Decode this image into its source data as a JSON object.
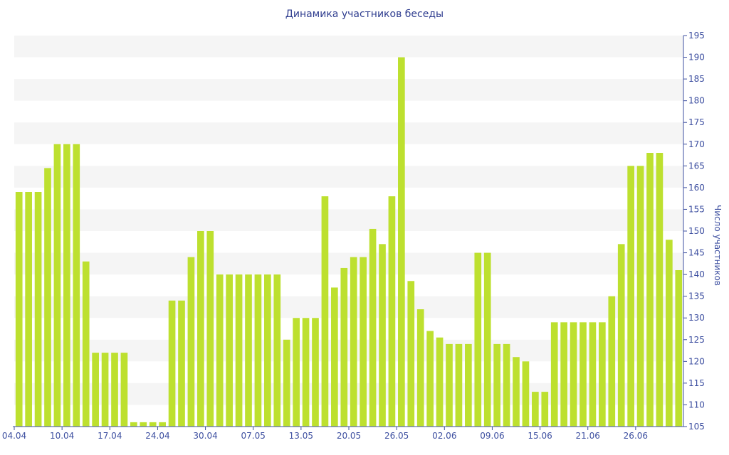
{
  "chart_data": {
    "type": "bar",
    "title": "Динамика участников беседы",
    "xlabel": "",
    "ylabel": "Число участников",
    "y_axis_side": "right",
    "ylim": [
      105,
      195
    ],
    "ytick_step": 5,
    "grid": "alternating horizontal bands",
    "legend": "none",
    "bar_color": "#bde02f",
    "band_color": "#f5f5f5",
    "axis_color": "#3d4fa0",
    "xtick_labels": [
      {
        "index": 0,
        "label": "04.04"
      },
      {
        "index": 5,
        "label": "10.04"
      },
      {
        "index": 10,
        "label": "17.04"
      },
      {
        "index": 15,
        "label": "24.04"
      },
      {
        "index": 20,
        "label": "30.04"
      },
      {
        "index": 25,
        "label": "07.05"
      },
      {
        "index": 30,
        "label": "13.05"
      },
      {
        "index": 35,
        "label": "20.05"
      },
      {
        "index": 40,
        "label": "26.05"
      },
      {
        "index": 45,
        "label": "02.06"
      },
      {
        "index": 50,
        "label": "09.06"
      },
      {
        "index": 55,
        "label": "15.06"
      },
      {
        "index": 60,
        "label": "21.06"
      },
      {
        "index": 65,
        "label": "26.06"
      }
    ],
    "values": [
      159,
      159,
      159,
      164.5,
      170,
      170,
      170,
      143,
      122,
      122,
      122,
      122,
      106,
      106,
      106,
      106,
      134,
      134,
      144,
      150,
      150,
      140,
      140,
      140,
      140,
      140,
      140,
      140,
      125,
      130,
      130,
      130,
      158,
      137,
      141.5,
      144,
      144,
      150.5,
      147,
      158,
      190,
      138.5,
      132,
      127,
      125.5,
      124,
      124,
      124,
      145,
      145,
      124,
      124,
      121,
      120,
      113,
      113,
      129,
      129,
      129,
      129,
      129,
      129,
      135,
      147,
      165,
      165,
      168,
      168,
      148,
      141
    ]
  }
}
